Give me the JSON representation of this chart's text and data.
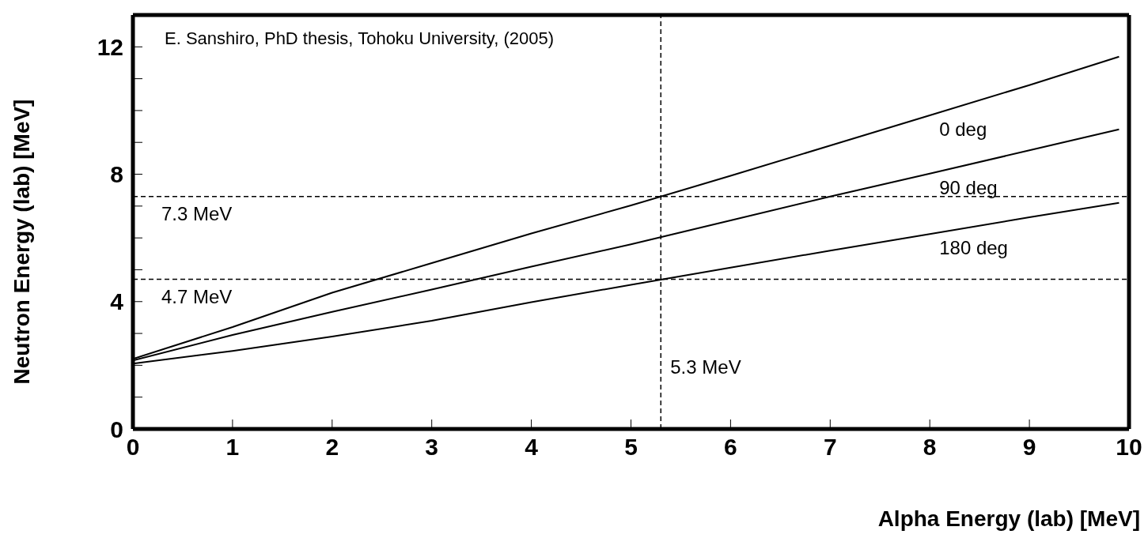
{
  "chart_data": {
    "type": "line",
    "xlabel": "Alpha Energy (lab) [MeV]",
    "ylabel": "Neutron Energy (lab) [MeV]",
    "x": [
      0,
      1,
      2,
      3,
      4,
      5,
      6,
      7,
      8,
      9,
      9.9
    ],
    "series": [
      {
        "name": "0 deg",
        "color": "#000000",
        "values": [
          2.2,
          3.2,
          4.28,
          5.21,
          6.14,
          7.02,
          7.95,
          8.9,
          9.85,
          10.8,
          11.69
        ]
      },
      {
        "name": "90 deg",
        "color": "#000000",
        "values": [
          2.15,
          2.95,
          3.68,
          4.38,
          5.1,
          5.8,
          6.55,
          7.3,
          8.02,
          8.75,
          9.41
        ]
      },
      {
        "name": "180 deg",
        "color": "#000000",
        "values": [
          2.05,
          2.45,
          2.9,
          3.4,
          3.98,
          4.53,
          5.07,
          5.6,
          6.12,
          6.65,
          7.1
        ]
      }
    ],
    "xlim": [
      0,
      10
    ],
    "xticks": [
      0,
      1,
      2,
      3,
      4,
      5,
      6,
      7,
      8,
      9,
      10
    ],
    "ylim": [
      0,
      13
    ],
    "yticks": [
      0,
      {
        "value": 1,
        "label": null
      },
      {
        "value": 2,
        "label": null
      },
      {
        "value": 3,
        "label": null
      },
      4,
      {
        "value": 5,
        "label": null
      },
      {
        "value": 6,
        "label": null
      },
      {
        "value": 7,
        "label": null
      },
      8,
      {
        "value": 9,
        "label": null
      },
      {
        "value": 10,
        "label": null
      },
      {
        "value": 11,
        "label": null
      },
      12
    ],
    "ref_lines": [
      {
        "axis": "x",
        "value": 5.3,
        "label": "5.3 MeV",
        "color": "#000000",
        "line_style": "dashed"
      },
      {
        "axis": "y",
        "value": 7.3,
        "label": "7.3 MeV",
        "color": "#000000",
        "line_style": "dashed"
      },
      {
        "axis": "y",
        "value": 4.7,
        "label": "4.7 MeV",
        "color": "#000000",
        "line_style": "dashed"
      }
    ],
    "annotations": [
      "E. Sanshiro, PhD thesis, Tohoku University, (2005)"
    ],
    "legend": false,
    "marker": "none",
    "line_style": "solid"
  }
}
